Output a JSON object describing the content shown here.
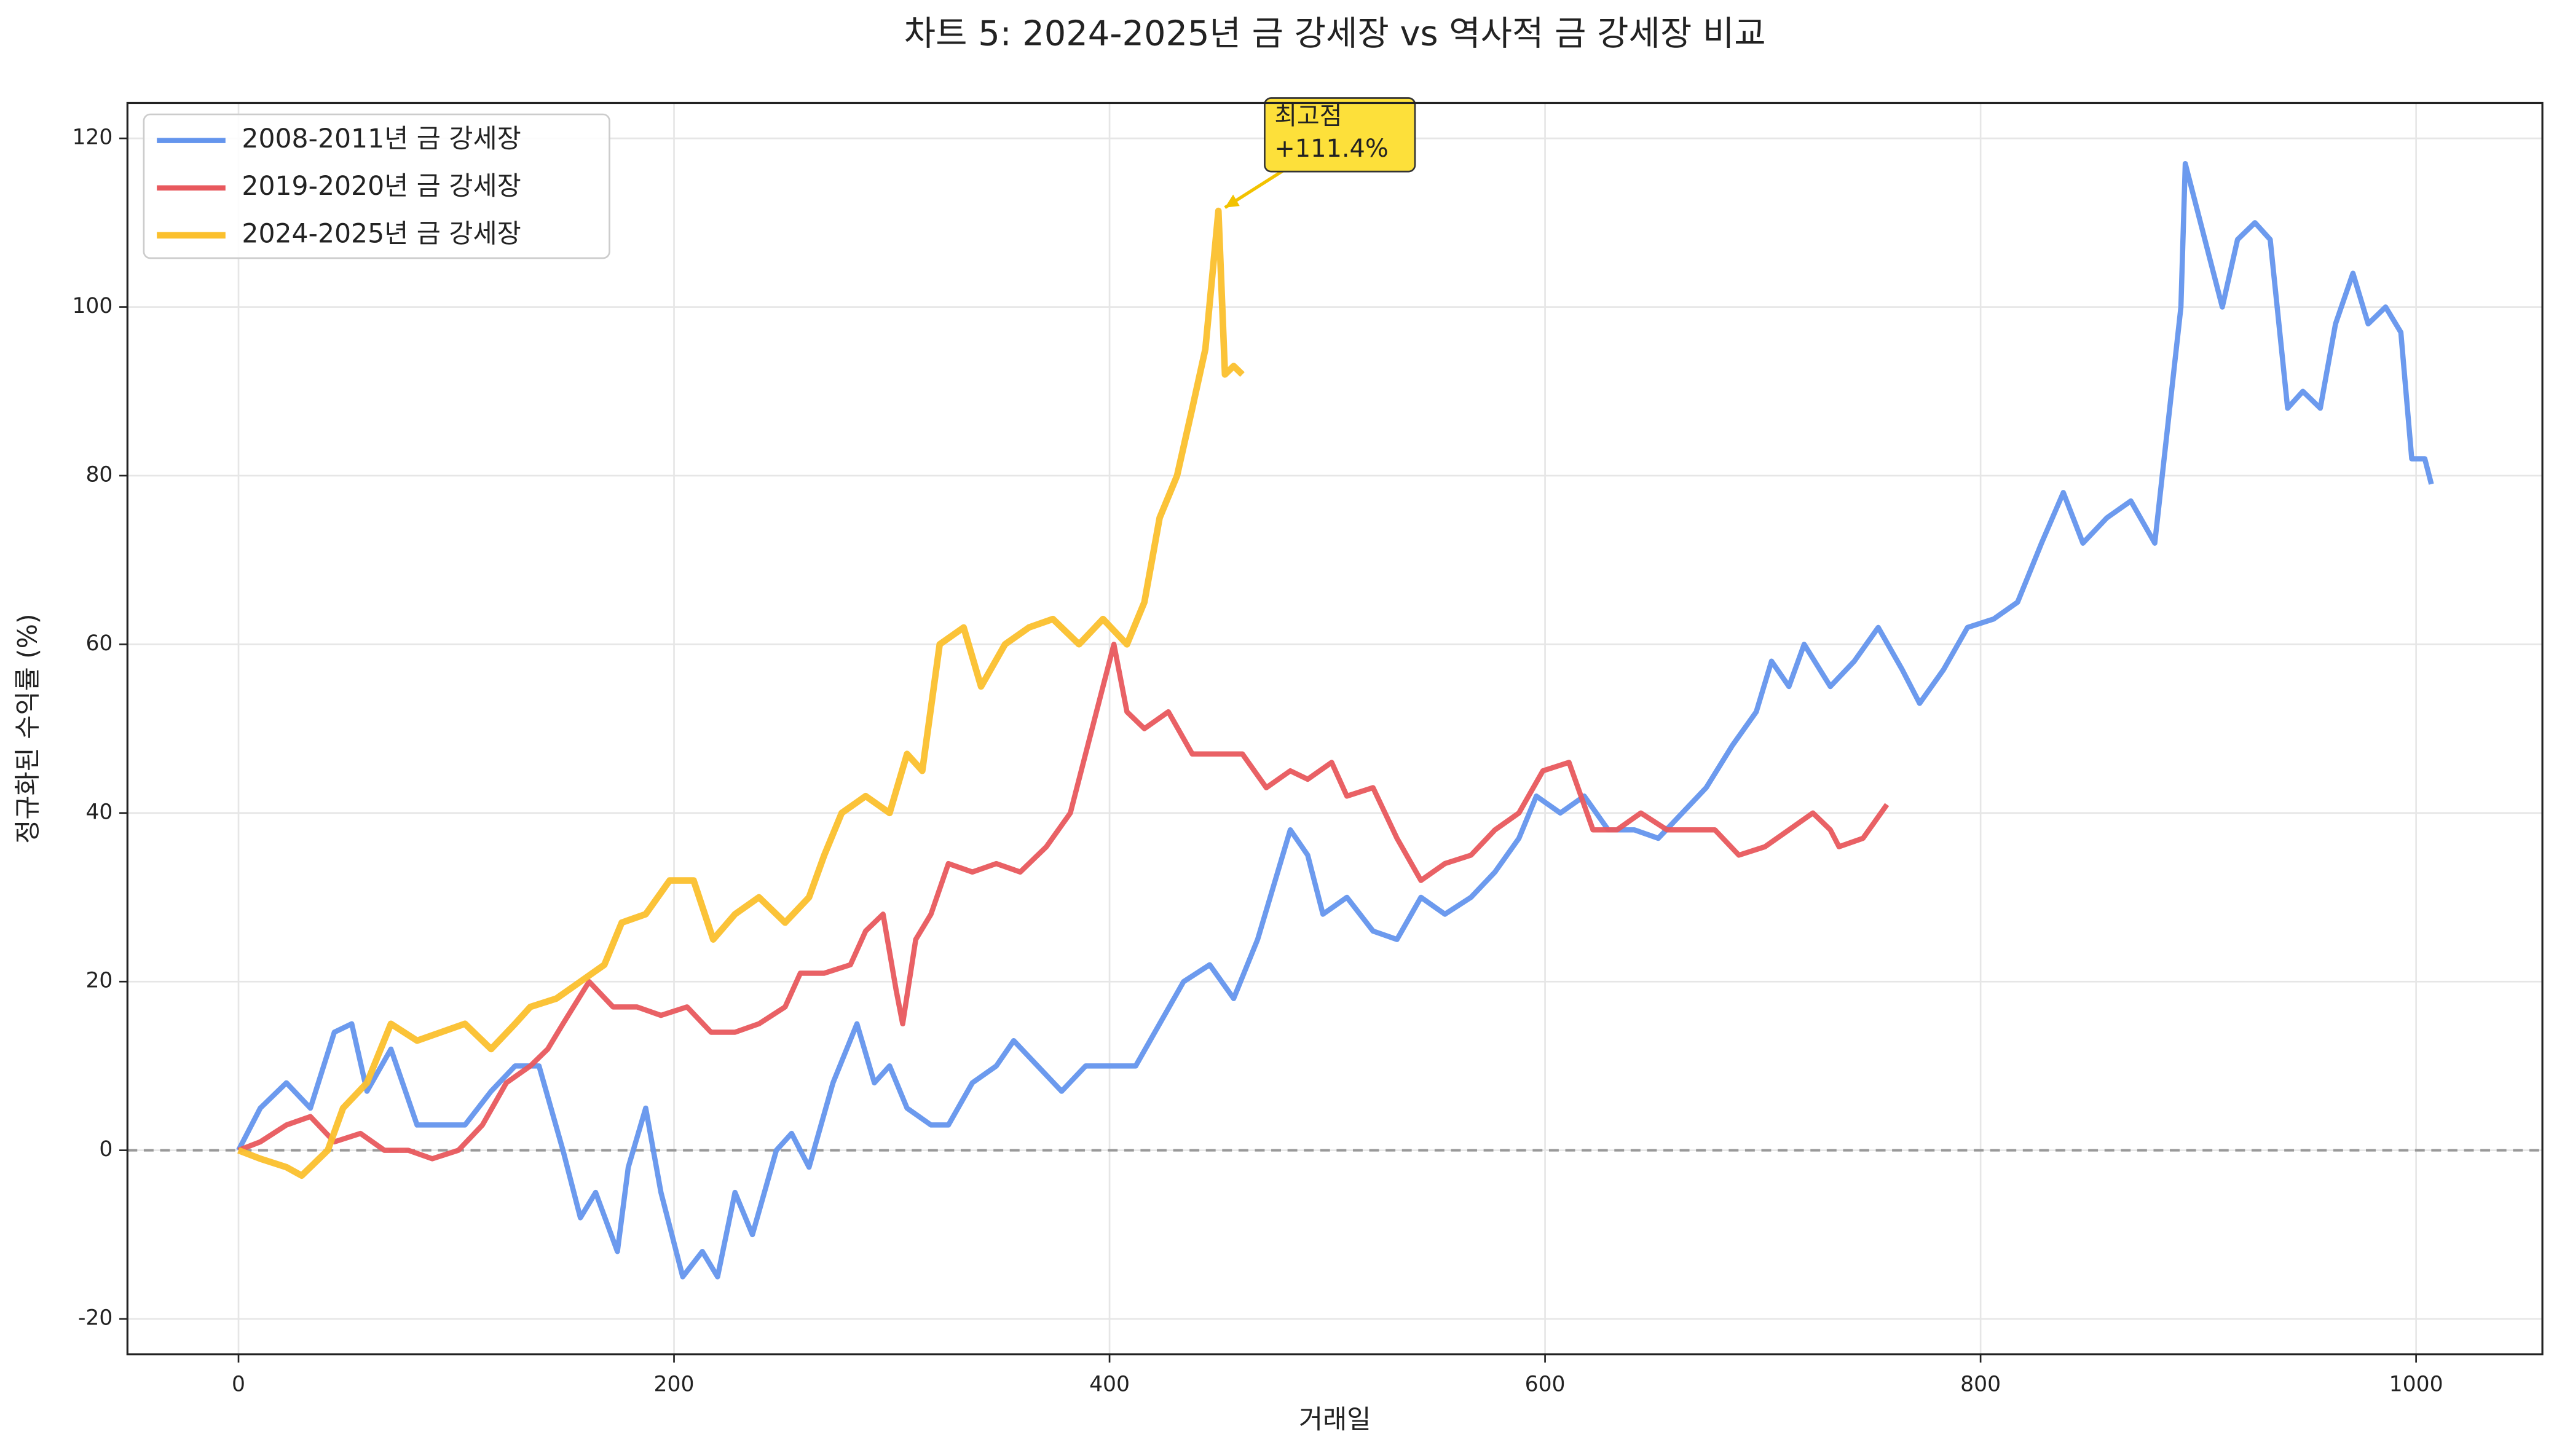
{
  "chart_data": {
    "type": "line",
    "title": "차트 5: 2024-2025년 금 강세장 vs 역사적 금 강세장 비교",
    "xlabel": "거래일",
    "ylabel": "정규화된 수익률 (%)",
    "xlim": [
      -51,
      1058
    ],
    "ylim": [
      -24.2,
      124.2
    ],
    "xticks": [
      0,
      200,
      400,
      600,
      800,
      1000
    ],
    "yticks": [
      -20,
      0,
      20,
      40,
      60,
      80,
      100,
      120
    ],
    "grid": true,
    "legend": "upper left",
    "hline": 0,
    "series": [
      {
        "name": "2008-2011년 금 강세장",
        "color": "#6495ed",
        "x": [
          0,
          10,
          22,
          33,
          44,
          52,
          59,
          70,
          82,
          93,
          104,
          116,
          127,
          138,
          149,
          157,
          164,
          174,
          179,
          187,
          194,
          204,
          213,
          220,
          228,
          236,
          247,
          254,
          262,
          273,
          284,
          292,
          299,
          307,
          318,
          326,
          337,
          348,
          356,
          367,
          378,
          389,
          401,
          412,
          423,
          434,
          446,
          457,
          468,
          483,
          491,
          498,
          509,
          521,
          532,
          543,
          554,
          566,
          577,
          588,
          596,
          607,
          618,
          629,
          641,
          652,
          663,
          674,
          686,
          697,
          704,
          712,
          719,
          731,
          742,
          753,
          764,
          772,
          783,
          794,
          806,
          817,
          828,
          838,
          847,
          858,
          869,
          880,
          892,
          894,
          903,
          911,
          918,
          926,
          933,
          941,
          948,
          956,
          963,
          971,
          978,
          986,
          993,
          998,
          1004,
          1007
        ],
        "values": [
          0,
          5,
          8,
          5,
          14,
          15,
          7,
          12,
          3,
          3,
          3,
          7,
          10,
          10,
          0,
          -8,
          -5,
          -12,
          -2,
          5,
          -5,
          -15,
          -12,
          -15,
          -5,
          -10,
          0,
          2,
          -2,
          8,
          15,
          8,
          10,
          5,
          3,
          3,
          8,
          10,
          13,
          10,
          7,
          10,
          10,
          10,
          15,
          20,
          22,
          18,
          25,
          38,
          35,
          28,
          30,
          26,
          25,
          30,
          28,
          30,
          33,
          37,
          42,
          40,
          42,
          38,
          38,
          37,
          40,
          43,
          48,
          52,
          58,
          55,
          60,
          55,
          58,
          62,
          57,
          53,
          57,
          62,
          63,
          65,
          72,
          78,
          72,
          75,
          77,
          72,
          100,
          117,
          108,
          100,
          108,
          110,
          108,
          88,
          90,
          88,
          98,
          104,
          98,
          100,
          97,
          82,
          82,
          79
        ]
      },
      {
        "name": "2019-2020년 금 강세장",
        "color": "#e8585d",
        "x": [
          0,
          10,
          22,
          33,
          44,
          56,
          67,
          78,
          89,
          101,
          112,
          123,
          134,
          142,
          149,
          161,
          172,
          183,
          194,
          206,
          217,
          228,
          239,
          251,
          258,
          269,
          281,
          288,
          296,
          302,
          305,
          311,
          318,
          326,
          337,
          348,
          359,
          371,
          382,
          389,
          397,
          402,
          408,
          416,
          427,
          438,
          449,
          461,
          472,
          483,
          491,
          502,
          509,
          521,
          532,
          543,
          554,
          566,
          577,
          588,
          599,
          611,
          622,
          633,
          644,
          656,
          667,
          678,
          689,
          701,
          712,
          723,
          731,
          735,
          746,
          757
        ],
        "values": [
          0,
          1,
          3,
          4,
          1,
          2,
          0,
          0,
          -1,
          0,
          3,
          8,
          10,
          12,
          15,
          20,
          17,
          17,
          16,
          17,
          14,
          14,
          15,
          17,
          21,
          21,
          22,
          26,
          28,
          19,
          15,
          25,
          28,
          34,
          33,
          34,
          33,
          36,
          40,
          47,
          55,
          60,
          52,
          50,
          52,
          47,
          47,
          47,
          43,
          45,
          44,
          46,
          42,
          43,
          37,
          32,
          34,
          35,
          38,
          40,
          45,
          46,
          38,
          38,
          40,
          38,
          38,
          38,
          35,
          36,
          38,
          40,
          38,
          36,
          37,
          41
        ]
      },
      {
        "name": "2024-2025년 금 강세장",
        "color": "#fbc02d",
        "x": [
          0,
          10,
          22,
          29,
          41,
          48,
          59,
          70,
          82,
          93,
          104,
          116,
          127,
          134,
          146,
          157,
          168,
          176,
          187,
          198,
          209,
          218,
          228,
          239,
          251,
          262,
          269,
          277,
          288,
          299,
          307,
          314,
          322,
          333,
          341,
          352,
          363,
          374,
          386,
          397,
          408,
          416,
          423,
          431,
          438,
          444,
          450,
          453,
          457,
          461
        ],
        "values": [
          0,
          -1,
          -2,
          -3,
          0,
          5,
          8,
          15,
          13,
          14,
          15,
          12,
          15,
          17,
          18,
          20,
          22,
          27,
          28,
          32,
          32,
          25,
          28,
          30,
          27,
          30,
          35,
          40,
          42,
          40,
          47,
          45,
          60,
          62,
          55,
          60,
          62,
          63,
          60,
          63,
          60,
          65,
          75,
          80,
          88,
          95,
          111.4,
          92,
          93,
          92
        ]
      }
    ],
    "annotation": {
      "text_lines": [
        "최고점",
        "+111.4%"
      ],
      "x": 450,
      "y": 111.4
    }
  }
}
